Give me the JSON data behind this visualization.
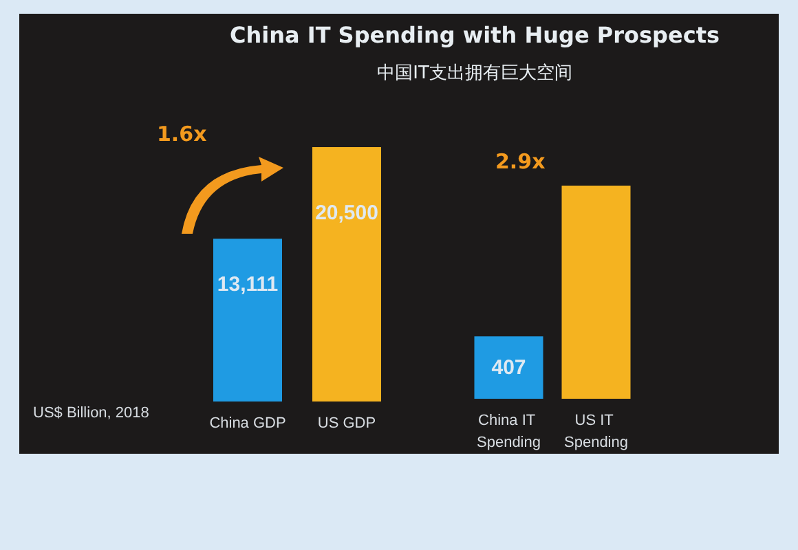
{
  "chart_data": [
    {
      "type": "bar",
      "title": "China IT Spending with Huge Prospects",
      "subtitle": "中国IT支出拥有巨大空间",
      "categories": [
        "China GDP",
        "US GDP"
      ],
      "values": [
        13111,
        20500
      ],
      "colors": [
        "#1f9be3",
        "#f5b320"
      ],
      "value_labels": [
        "13,111",
        "20,500"
      ],
      "annotations": [
        "1.6x",
        "US$ Billion, 2018"
      ],
      "grid": false
    },
    {
      "type": "bar",
      "categories": [
        "China IT Spending",
        "US IT Spending"
      ],
      "values": [
        407,
        1390
      ],
      "colors": [
        "#1f9be3",
        "#f5b320"
      ],
      "value_labels": [
        "407",
        null
      ],
      "annotations": [
        "2.9x"
      ],
      "grid": false
    }
  ]
}
